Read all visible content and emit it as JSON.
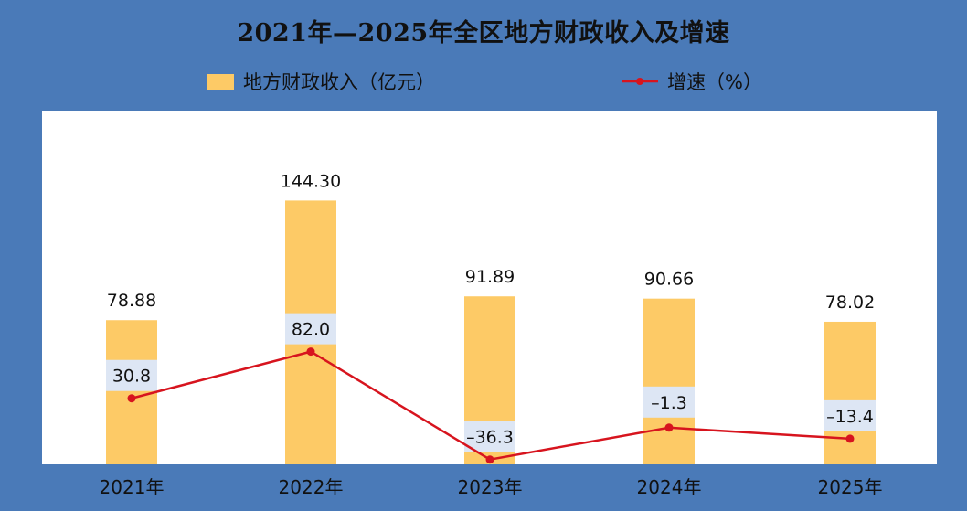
{
  "title": "2021年—2025年全区地方财政收入及增速",
  "legend": {
    "bar_label": "地方财政收入（亿元）",
    "line_label": "增速（%）"
  },
  "colors": {
    "background": "#4a7ab8",
    "plot_area": "#ffffff",
    "bar": "#fdca66",
    "label_box": "#dde6f4",
    "line": "#d7141e"
  },
  "chart_data": {
    "type": "bar",
    "categories": [
      "2021年",
      "2022年",
      "2023年",
      "2024年",
      "2025年"
    ],
    "series": [
      {
        "name": "地方财政收入（亿元）",
        "type": "bar",
        "values": [
          78.88,
          144.3,
          91.89,
          90.66,
          78.02
        ],
        "labels": [
          "78.88",
          "144.30",
          "91.89",
          "90.66",
          "78.02"
        ]
      },
      {
        "name": "增速（%）",
        "type": "line",
        "values": [
          30.8,
          82.0,
          -36.3,
          -1.3,
          -13.4
        ],
        "labels": [
          "30.8",
          "82.0",
          "–36.3",
          "–1.3",
          "–13.4"
        ]
      }
    ],
    "grid": false,
    "legend_position": "top"
  }
}
